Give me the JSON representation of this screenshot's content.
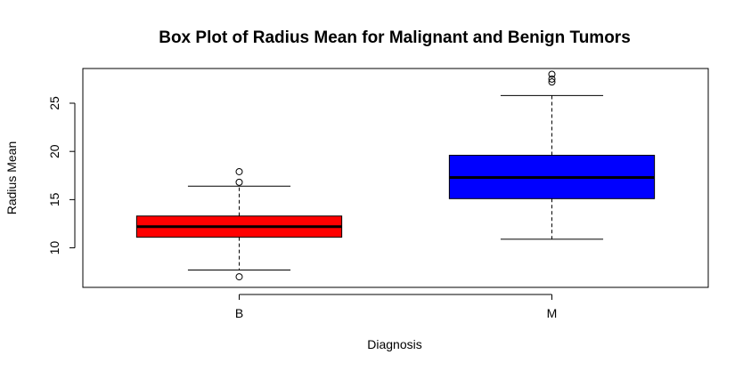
{
  "chart_data": {
    "type": "boxplot",
    "title": "Box Plot of Radius Mean for Malignant and Benign Tumors",
    "xlabel": "Diagnosis",
    "ylabel": "Radius Mean",
    "categories": [
      "B",
      "M"
    ],
    "ylim": [
      5.9,
      28.6
    ],
    "yticks": [
      10,
      15,
      20,
      25
    ],
    "grid": false,
    "boxes": [
      {
        "category": "B",
        "color": "#ff0000",
        "whisker_low": 7.7,
        "q1": 11.1,
        "median": 12.2,
        "q3": 13.3,
        "whisker_high": 16.4,
        "outliers": [
          17.9,
          16.8,
          7.0
        ]
      },
      {
        "category": "M",
        "color": "#0000ff",
        "whisker_low": 10.9,
        "q1": 15.1,
        "median": 17.3,
        "q3": 19.6,
        "whisker_high": 25.8,
        "outliers": [
          28.0,
          27.5,
          27.2
        ]
      }
    ]
  }
}
